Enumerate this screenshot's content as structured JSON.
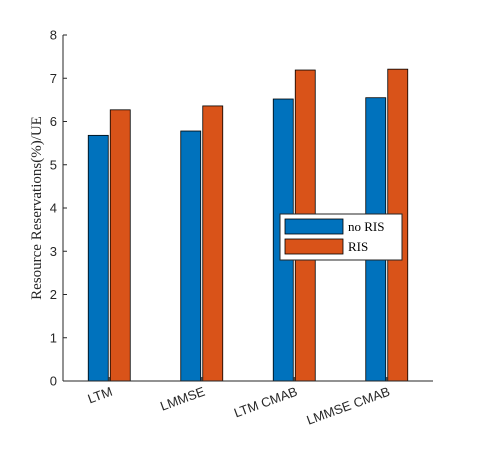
{
  "chart_data": {
    "type": "bar",
    "title": "",
    "xlabel": "",
    "ylabel": "Resource Reservations(%)/UE",
    "categories": [
      "LTM",
      "LMMSE",
      "LTM CMAB",
      "LMMSE CMAB"
    ],
    "series": [
      {
        "name": "no RIS",
        "values": [
          5.68,
          5.78,
          6.52,
          6.55
        ],
        "color": "#0072BD"
      },
      {
        "name": "RIS",
        "values": [
          6.27,
          6.36,
          7.19,
          7.21
        ],
        "color": "#D95319"
      }
    ],
    "ylim": [
      0,
      8
    ],
    "yticks": [
      "0",
      "1",
      "2",
      "3",
      "4",
      "5",
      "6",
      "7",
      "8"
    ],
    "grid": false,
    "legend_position": "right"
  }
}
